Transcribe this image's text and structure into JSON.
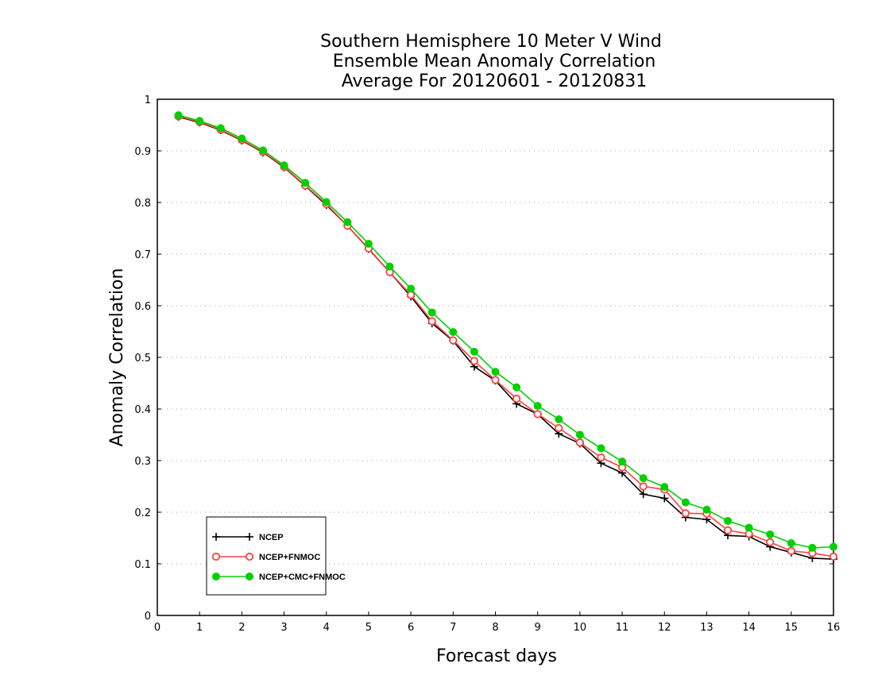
{
  "chart_data": {
    "type": "line",
    "title_lines": [
      "Southern Hemisphere 10 Meter V Wind",
      "Ensemble Mean Anomaly Correlation",
      "Average For 20120601 - 20120831"
    ],
    "xlabel": "Forecast days",
    "ylabel": "Anomaly Correlation",
    "xlim": [
      0,
      16
    ],
    "ylim": [
      0,
      1
    ],
    "x_ticks": [
      0,
      1,
      2,
      3,
      4,
      5,
      6,
      7,
      8,
      9,
      10,
      11,
      12,
      13,
      14,
      15,
      16
    ],
    "y_ticks": [
      0,
      0.1,
      0.2,
      0.3,
      0.4,
      0.5,
      0.6,
      0.7,
      0.8,
      0.9,
      1
    ],
    "y_tick_labels": [
      "0",
      "0.1",
      "0.2",
      "0.3",
      "0.4",
      "0.5",
      "0.6",
      "0.7",
      "0.8",
      "0.9",
      "1"
    ],
    "grid": "horizontal dotted",
    "legend_position": "bottom-left",
    "x": [
      0.5,
      1,
      1.5,
      2,
      2.5,
      3,
      3.5,
      4,
      4.5,
      5,
      5.5,
      6,
      6.5,
      7,
      7.5,
      8,
      8.5,
      9,
      9.5,
      10,
      10.5,
      11,
      11.5,
      12,
      12.5,
      13,
      13.5,
      14,
      14.5,
      15,
      15.5,
      16
    ],
    "series": [
      {
        "name": "NCEP",
        "color": "#000000",
        "marker": "plus",
        "values": [
          0.966,
          0.955,
          0.94,
          0.92,
          0.897,
          0.868,
          0.832,
          0.795,
          0.755,
          0.71,
          0.665,
          0.618,
          0.566,
          0.532,
          0.482,
          0.455,
          0.41,
          0.39,
          0.352,
          0.333,
          0.295,
          0.276,
          0.235,
          0.227,
          0.19,
          0.186,
          0.155,
          0.153,
          0.133,
          0.122,
          0.111,
          0.109
        ]
      },
      {
        "name": "NCEP+FNMOC",
        "color": "#ff4040",
        "marker": "open-circle",
        "values": [
          0.967,
          0.956,
          0.941,
          0.921,
          0.898,
          0.869,
          0.833,
          0.797,
          0.755,
          0.711,
          0.665,
          0.621,
          0.57,
          0.533,
          0.493,
          0.456,
          0.42,
          0.39,
          0.363,
          0.335,
          0.306,
          0.287,
          0.25,
          0.244,
          0.198,
          0.197,
          0.165,
          0.158,
          0.142,
          0.125,
          0.121,
          0.114
        ]
      },
      {
        "name": "NCEP+CMC+FNMOC",
        "color": "#00d000",
        "marker": "filled-circle",
        "values": [
          0.969,
          0.958,
          0.944,
          0.924,
          0.901,
          0.872,
          0.838,
          0.801,
          0.762,
          0.72,
          0.676,
          0.633,
          0.587,
          0.549,
          0.511,
          0.472,
          0.442,
          0.406,
          0.38,
          0.35,
          0.324,
          0.298,
          0.266,
          0.249,
          0.219,
          0.205,
          0.183,
          0.17,
          0.157,
          0.14,
          0.131,
          0.133
        ]
      }
    ]
  }
}
